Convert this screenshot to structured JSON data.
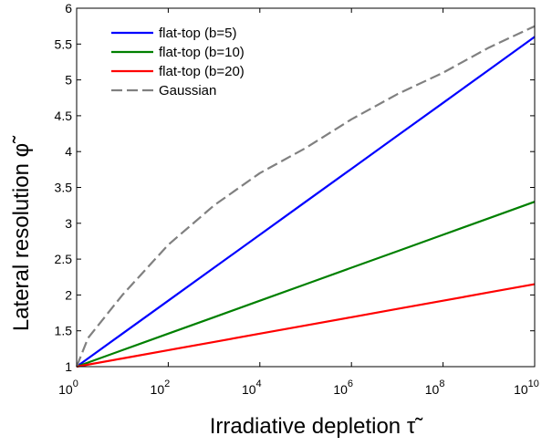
{
  "chart_data": {
    "type": "line",
    "title": "",
    "xlabel": "Irradiative depletion τ̃",
    "ylabel": "Lateral resolution φ̃",
    "xscale": "log10",
    "xlim_exp": [
      0,
      10
    ],
    "ylim": [
      1,
      6
    ],
    "x_tick_labels": [
      {
        "base": "10",
        "exp": "0"
      },
      {
        "base": "10",
        "exp": "2"
      },
      {
        "base": "10",
        "exp": "4"
      },
      {
        "base": "10",
        "exp": "6"
      },
      {
        "base": "10",
        "exp": "8"
      },
      {
        "base": "10",
        "exp": "10"
      }
    ],
    "y_ticks": [
      1,
      1.5,
      2,
      2.5,
      3,
      3.5,
      4,
      4.5,
      5,
      5.5,
      6
    ],
    "y_tick_labels": [
      "1",
      "1.5",
      "2",
      "2.5",
      "3",
      "3.5",
      "4",
      "4.5",
      "5",
      "5.5",
      "6"
    ],
    "legend_position": "top-left",
    "grid": false,
    "series": [
      {
        "name": "flat-top (b=5)",
        "color": "#0000ff",
        "dash": "solid",
        "x_exp": [
          0,
          1,
          2,
          3,
          4,
          5,
          6,
          7,
          8,
          9,
          10
        ],
        "values": [
          1.0,
          1.46,
          1.92,
          2.38,
          2.84,
          3.3,
          3.76,
          4.22,
          4.68,
          5.14,
          5.6
        ]
      },
      {
        "name": "flat-top (b=10)",
        "color": "#008000",
        "dash": "solid",
        "x_exp": [
          0,
          1,
          2,
          3,
          4,
          5,
          6,
          7,
          8,
          9,
          10
        ],
        "values": [
          1.0,
          1.23,
          1.46,
          1.69,
          1.92,
          2.15,
          2.38,
          2.61,
          2.84,
          3.07,
          3.3
        ]
      },
      {
        "name": "flat-top (b=20)",
        "color": "#ff0000",
        "dash": "solid",
        "x_exp": [
          0,
          1,
          2,
          3,
          4,
          5,
          6,
          7,
          8,
          9,
          10
        ],
        "values": [
          1.0,
          1.115,
          1.23,
          1.345,
          1.46,
          1.575,
          1.69,
          1.805,
          1.92,
          2.035,
          2.15
        ]
      },
      {
        "name": "Gaussian",
        "color": "#808080",
        "dash": "dashed",
        "x_exp": [
          0,
          0.25,
          0.5,
          1,
          2,
          3,
          4,
          5,
          6,
          7,
          8,
          9,
          10
        ],
        "values": [
          1.0,
          1.4,
          1.6,
          2.0,
          2.7,
          3.25,
          3.7,
          4.05,
          4.45,
          4.8,
          5.1,
          5.45,
          5.75
        ]
      }
    ]
  }
}
